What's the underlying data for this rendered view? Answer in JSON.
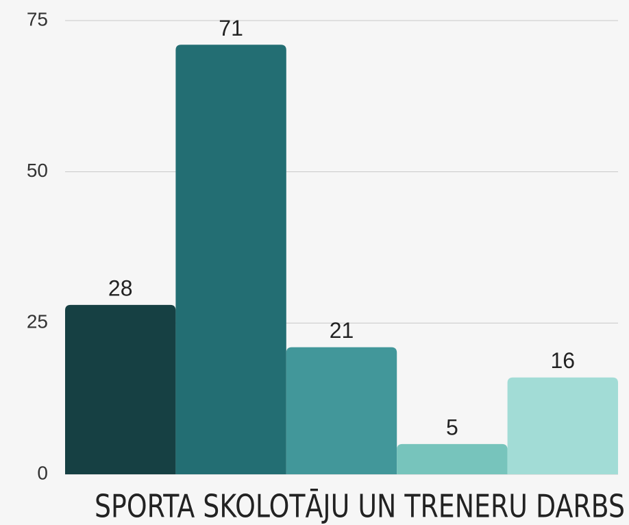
{
  "chart_data": {
    "type": "bar",
    "title": "SPORTA SKOLOTĀJU UN TRENERU DARBS",
    "categories": [
      null,
      null,
      null,
      null,
      null
    ],
    "values": [
      28,
      71,
      21,
      5,
      16
    ],
    "colors": [
      "#164043",
      "#236e73",
      "#42979a",
      "#77c4bc",
      "#a2dcd6"
    ],
    "ylim": [
      0,
      75
    ],
    "yticks": [
      0,
      25,
      50,
      75
    ],
    "grid": true
  }
}
